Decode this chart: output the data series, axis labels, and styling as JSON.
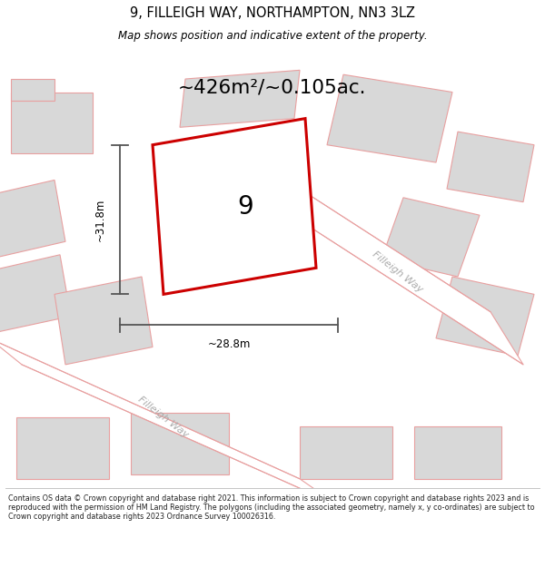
{
  "title_line1": "9, FILLEIGH WAY, NORTHAMPTON, NN3 3LZ",
  "title_line2": "Map shows position and indicative extent of the property.",
  "area_text": "~426m²/~0.105ac.",
  "property_number": "9",
  "dim_horizontal": "~28.8m",
  "dim_vertical": "~31.8m",
  "road_label_1": "Filleigh Way",
  "road_label_2": "Filleigh Way",
  "footer_text": "Contains OS data © Crown copyright and database right 2021. This information is subject to Crown copyright and database rights 2023 and is reproduced with the permission of HM Land Registry. The polygons (including the associated geometry, namely x, y co-ordinates) are subject to Crown copyright and database rights 2023 Ordnance Survey 100026316.",
  "bg_color": "#ffffff",
  "map_bg_color": "#f2f2f2",
  "building_color": "#d8d8d8",
  "building_edge_color": "#e8a0a0",
  "plot_color": "#ffffff",
  "plot_edge_color": "#cc0000",
  "road_color": "#ffffff",
  "road_line_color": "#e8a0a0",
  "dim_color": "#000000",
  "text_color": "#000000",
  "road_label_color": "#aaaaaa"
}
